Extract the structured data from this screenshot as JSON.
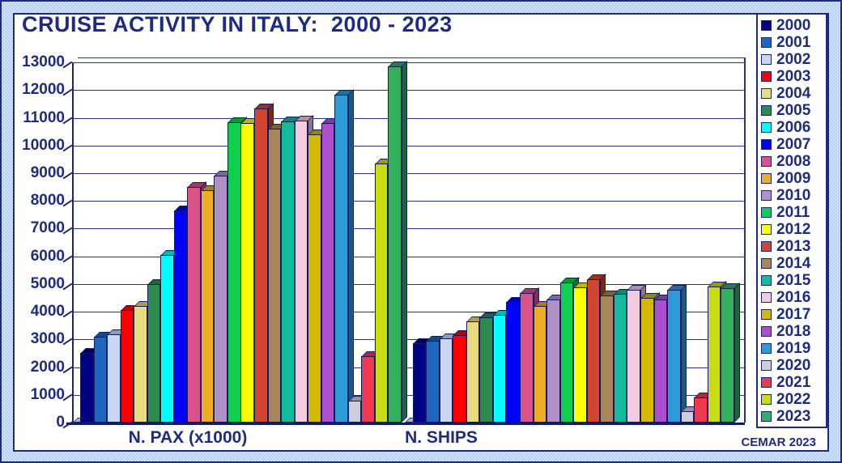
{
  "title": "CRUISE ACTIVITY IN ITALY:  2000 - 2023",
  "credit": "CEMAR 2023",
  "colors": {
    "text_navy": "#1f2b80",
    "grid_navy": "#2a3487",
    "outline_navy": "#101c60",
    "frame_light_blue": "#bcd6f1",
    "plot_background": "#ffffff"
  },
  "chart_data": {
    "type": "bar",
    "title": "CRUISE ACTIVITY IN ITALY: 2000 - 2023",
    "categories": [
      "N. PAX (x1000)",
      "N. SHIPS"
    ],
    "ylim": [
      0,
      13000
    ],
    "ytick_step": 1000,
    "yticks": [
      0,
      1000,
      2000,
      3000,
      4000,
      5000,
      6000,
      7000,
      8000,
      9000,
      10000,
      11000,
      12000,
      13000
    ],
    "grid": true,
    "legend_position": "right",
    "style": "3d-column",
    "series": [
      {
        "name": "2000",
        "color": "#000080",
        "values": [
          2500,
          2850
        ]
      },
      {
        "name": "2001",
        "color": "#2066be",
        "values": [
          3100,
          2950
        ]
      },
      {
        "name": "2002",
        "color": "#c9d6f4",
        "values": [
          3200,
          3050
        ]
      },
      {
        "name": "2003",
        "color": "#ff0000",
        "values": [
          4050,
          3150
        ]
      },
      {
        "name": "2004",
        "color": "#e8dc82",
        "values": [
          4200,
          3650
        ]
      },
      {
        "name": "2005",
        "color": "#2e8b4d",
        "values": [
          5000,
          3800
        ]
      },
      {
        "name": "2006",
        "color": "#00ffff",
        "values": [
          6050,
          3900
        ]
      },
      {
        "name": "2007",
        "color": "#0000ff",
        "values": [
          7650,
          4350
        ]
      },
      {
        "name": "2008",
        "color": "#d9538a",
        "values": [
          8500,
          4670
        ]
      },
      {
        "name": "2009",
        "color": "#eead26",
        "values": [
          8400,
          4200
        ]
      },
      {
        "name": "2010",
        "color": "#b090c5",
        "values": [
          8900,
          4450
        ]
      },
      {
        "name": "2011",
        "color": "#10cf4f",
        "values": [
          10850,
          5050
        ]
      },
      {
        "name": "2012",
        "color": "#ffff00",
        "values": [
          10800,
          4870
        ]
      },
      {
        "name": "2013",
        "color": "#d4452f",
        "values": [
          11350,
          5180
        ]
      },
      {
        "name": "2014",
        "color": "#a8855a",
        "values": [
          10620,
          4600
        ]
      },
      {
        "name": "2015",
        "color": "#10bc9c",
        "values": [
          10860,
          4650
        ]
      },
      {
        "name": "2016",
        "color": "#f4cbde",
        "values": [
          10910,
          4800
        ]
      },
      {
        "name": "2017",
        "color": "#d5b900",
        "values": [
          10400,
          4500
        ]
      },
      {
        "name": "2018",
        "color": "#af4ed0",
        "values": [
          10800,
          4450
        ]
      },
      {
        "name": "2019",
        "color": "#2e9bd8",
        "values": [
          11850,
          4800
        ]
      },
      {
        "name": "2020",
        "color": "#cdcddb",
        "values": [
          800,
          400
        ]
      },
      {
        "name": "2021",
        "color": "#ed3a50",
        "values": [
          2400,
          900
        ]
      },
      {
        "name": "2022",
        "color": "#c7dd12",
        "values": [
          9350,
          4900
        ]
      },
      {
        "name": "2023",
        "color": "#34b05c",
        "values": [
          12850,
          4850
        ]
      }
    ]
  }
}
